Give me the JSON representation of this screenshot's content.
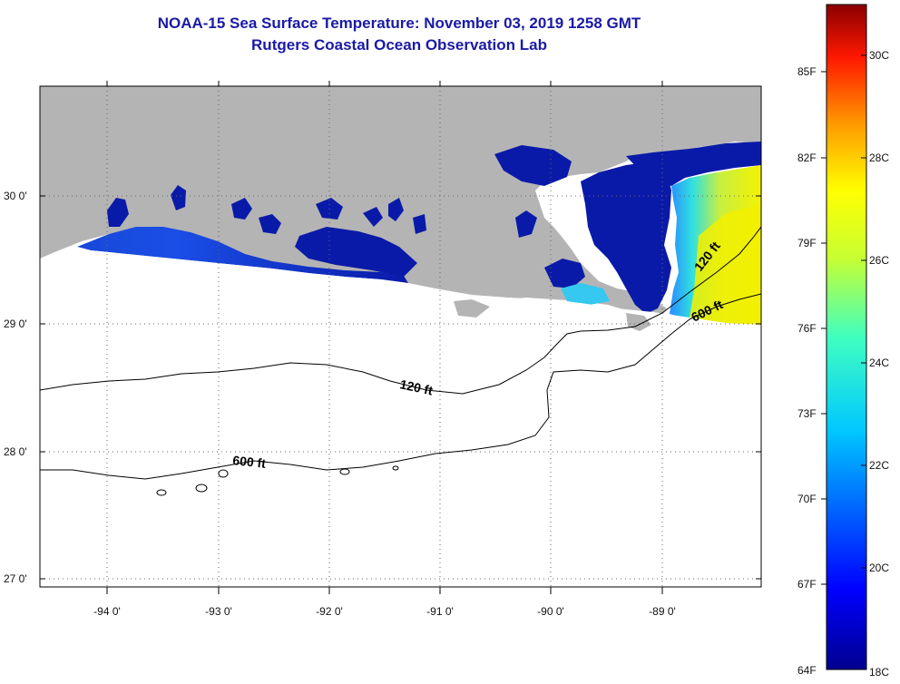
{
  "title": {
    "line1": "NOAA-15 Sea Surface Temperature:  November 03, 2019 1258 GMT",
    "line2": "Rutgers Coastal Ocean Observation Lab"
  },
  "map": {
    "lat_ticks": [
      "30 0'",
      "29 0'",
      "28 0'",
      "27 0'"
    ],
    "lon_ticks": [
      "-94 0'",
      "-93 0'",
      "-92 0'",
      "-91 0'",
      "-90 0'",
      "-89 0'"
    ],
    "contours": [
      {
        "label": "120 ft"
      },
      {
        "label": "600 ft"
      }
    ],
    "colors": {
      "land": "#b4b4b4",
      "water_cold": "#0a1aa8",
      "water_warm": "#f2f000"
    }
  },
  "colorbar": {
    "f_labels": [
      "85F",
      "82F",
      "79F",
      "76F",
      "73F",
      "70F",
      "67F",
      "64F"
    ],
    "c_labels": [
      "30C",
      "28C",
      "26C",
      "24C",
      "22C",
      "20C",
      "18C"
    ]
  }
}
